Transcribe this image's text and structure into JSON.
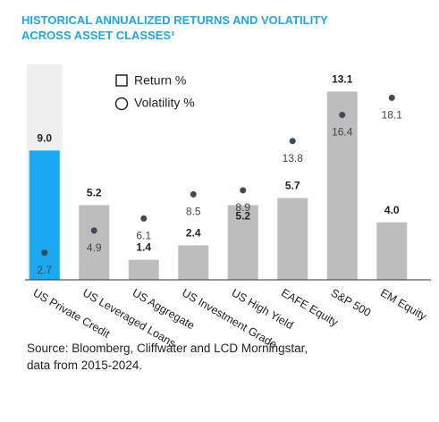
{
  "chart_data": {
    "type": "bar",
    "title": "HISTORICAL ANNUALIZED RETURNS AND VOLATILITY ACROSS ASSET CLASSES¹",
    "source": "Source: Bloomberg, Cliffwater and LCD Morningstar, data from 2015-2024.",
    "categories": [
      "US Private Credit",
      "US Leveraged Loans",
      "US Aggregate",
      "US Investment Grade",
      "US High Yield",
      "EAFE Equity",
      "S&P 500",
      "EM Equity"
    ],
    "highlight_index": 0,
    "highlight_color": "#1aa9f0",
    "series": [
      {
        "name": "Return %",
        "type": "bar",
        "color": "#bdbdbd",
        "values": [
          9.0,
          5.2,
          1.4,
          2.4,
          5.2,
          5.7,
          13.1,
          4.0
        ],
        "value_labels": [
          "9.0",
          "5.2",
          "1.4",
          "2.4",
          "5.2",
          "5.7",
          "13.1",
          "4.0"
        ]
      },
      {
        "name": "Volatility %",
        "type": "scatter",
        "axis": "y2",
        "color": "#3d4a5c",
        "values": [
          2.7,
          4.9,
          6.1,
          8.5,
          8.9,
          13.8,
          16.4,
          18.1
        ]
      }
    ],
    "ylim": [
      0,
      14
    ],
    "y2lim": [
      0,
      20
    ],
    "grid": false
  }
}
